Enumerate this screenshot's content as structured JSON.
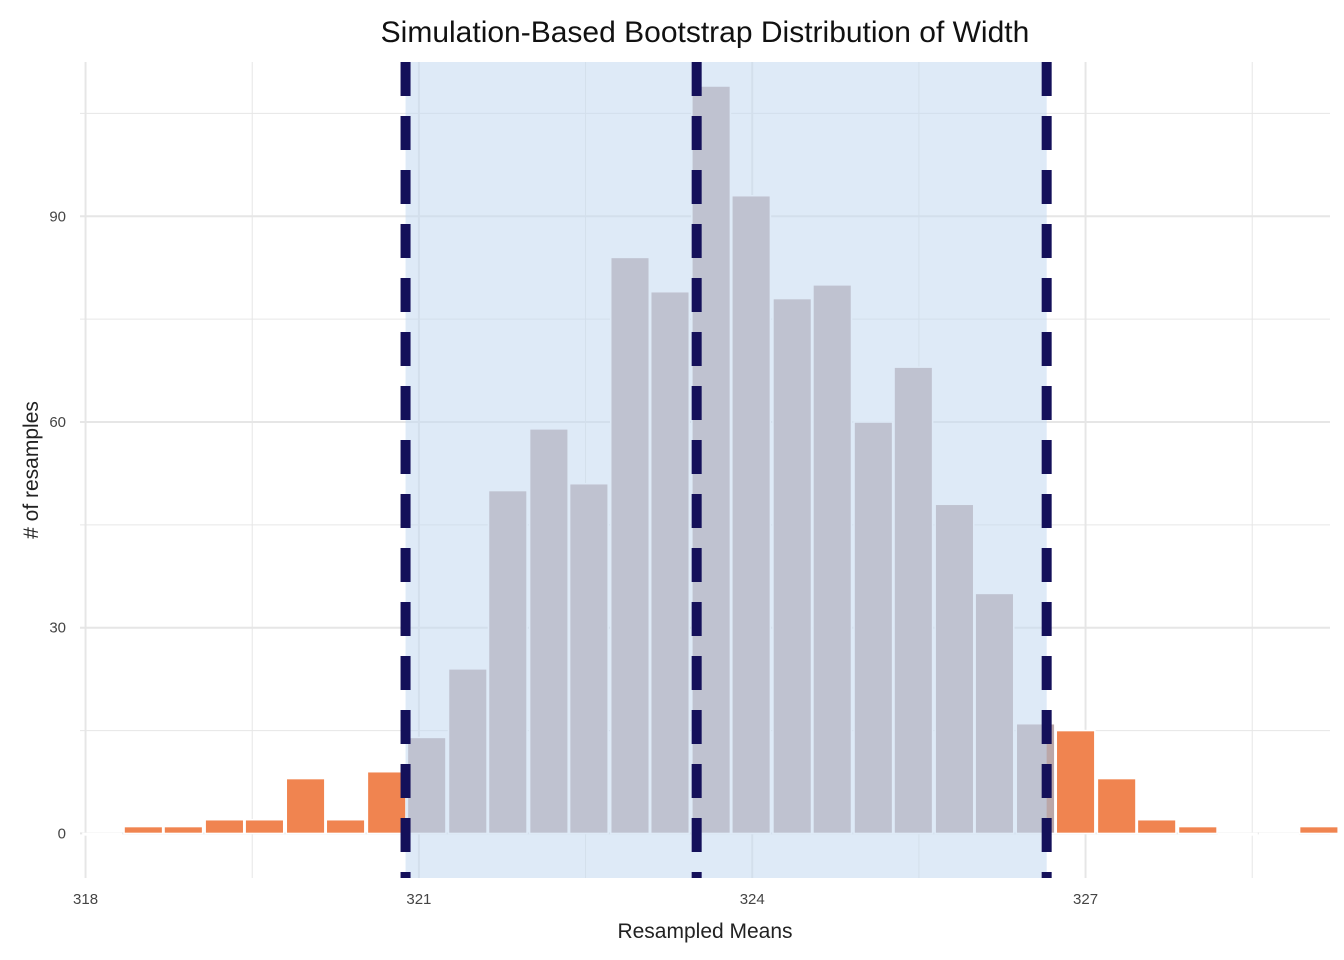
{
  "chart_data": {
    "type": "bar",
    "title": "Simulation-Based Bootstrap Distribution of Width",
    "xlabel": "Resampled Means",
    "ylabel": "# of resamples",
    "xlim": [
      317.95,
      329.2
    ],
    "ylim": [
      -6.5,
      112.5
    ],
    "x_ticks": [
      318,
      321,
      324,
      327
    ],
    "y_ticks": [
      0,
      30,
      60,
      90
    ],
    "bin_width": 0.365,
    "bins": [
      {
        "x": 318.15,
        "count": 0
      },
      {
        "x": 318.52,
        "count": 1
      },
      {
        "x": 318.88,
        "count": 1
      },
      {
        "x": 319.25,
        "count": 2
      },
      {
        "x": 319.61,
        "count": 2
      },
      {
        "x": 319.98,
        "count": 8
      },
      {
        "x": 320.34,
        "count": 2
      },
      {
        "x": 320.71,
        "count": 9
      },
      {
        "x": 321.07,
        "count": 14
      },
      {
        "x": 321.44,
        "count": 24
      },
      {
        "x": 321.8,
        "count": 50
      },
      {
        "x": 322.17,
        "count": 59
      },
      {
        "x": 322.53,
        "count": 51
      },
      {
        "x": 322.9,
        "count": 84
      },
      {
        "x": 323.26,
        "count": 79
      },
      {
        "x": 323.63,
        "count": 109
      },
      {
        "x": 323.99,
        "count": 93
      },
      {
        "x": 324.36,
        "count": 78
      },
      {
        "x": 324.72,
        "count": 80
      },
      {
        "x": 325.09,
        "count": 60
      },
      {
        "x": 325.45,
        "count": 68
      },
      {
        "x": 325.82,
        "count": 48
      },
      {
        "x": 326.18,
        "count": 35
      },
      {
        "x": 326.55,
        "count": 16
      },
      {
        "x": 326.91,
        "count": 15
      },
      {
        "x": 327.28,
        "count": 8
      },
      {
        "x": 327.64,
        "count": 2
      },
      {
        "x": 328.01,
        "count": 1
      },
      {
        "x": 328.37,
        "count": 0
      },
      {
        "x": 328.74,
        "count": 0
      },
      {
        "x": 329.1,
        "count": 1
      }
    ],
    "confidence_interval": {
      "lower": 320.88,
      "upper": 326.65
    },
    "center_line": 323.5,
    "grid": true,
    "colors": {
      "bar_outside": "#f08450",
      "bar_inside": "#bba7a8",
      "shade": "#c2d8f0",
      "vline": "#14105a",
      "grid": "#e6e6e6"
    }
  }
}
